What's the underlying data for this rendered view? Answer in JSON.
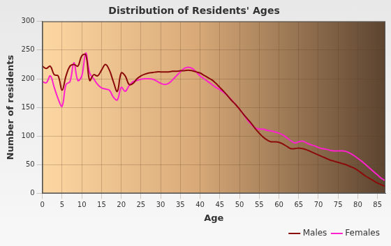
{
  "chart_data": {
    "type": "line",
    "title": "Distribution of Residents' Ages",
    "x_label": "Age",
    "y_label": "Number of residents",
    "x": [
      0,
      1,
      2,
      3,
      4,
      5,
      6,
      7,
      8,
      9,
      10,
      11,
      12,
      13,
      14,
      15,
      16,
      17,
      18,
      19,
      20,
      21,
      22,
      23,
      24,
      25,
      26,
      27,
      28,
      29,
      30,
      31,
      32,
      33,
      34,
      35,
      36,
      37,
      38,
      39,
      40,
      41,
      42,
      43,
      44,
      45,
      46,
      47,
      48,
      49,
      50,
      51,
      52,
      53,
      54,
      55,
      56,
      57,
      58,
      59,
      60,
      61,
      62,
      63,
      64,
      65,
      66,
      67,
      68,
      69,
      70,
      71,
      72,
      73,
      74,
      75,
      76,
      77,
      78,
      79,
      80,
      81,
      82,
      83,
      84,
      85,
      86,
      87
    ],
    "series": [
      {
        "name": "Males",
        "color": "#8b0a0a",
        "values": [
          222,
          218,
          222,
          207,
          205,
          180,
          205,
          222,
          225,
          222,
          240,
          242,
          197,
          207,
          205,
          215,
          225,
          215,
          195,
          178,
          210,
          205,
          190,
          192,
          200,
          205,
          208,
          210,
          211,
          212,
          212,
          212,
          212,
          213,
          213,
          214,
          214,
          215,
          214,
          212,
          210,
          206,
          202,
          198,
          192,
          185,
          178,
          170,
          162,
          155,
          147,
          138,
          130,
          122,
          113,
          105,
          98,
          93,
          90,
          90,
          89,
          86,
          82,
          78,
          78,
          79,
          78,
          76,
          73,
          70,
          67,
          64,
          61,
          58,
          56,
          54,
          52,
          50,
          47,
          44,
          40,
          35,
          30,
          26,
          22,
          18,
          15,
          12
        ]
      },
      {
        "name": "Females",
        "color": "#ff22cc",
        "values": [
          195,
          193,
          205,
          185,
          165,
          152,
          190,
          195,
          228,
          197,
          205,
          245,
          210,
          200,
          190,
          184,
          182,
          180,
          168,
          163,
          185,
          178,
          188,
          195,
          197,
          199,
          200,
          200,
          199,
          196,
          192,
          190,
          192,
          198,
          205,
          212,
          218,
          220,
          218,
          212,
          205,
          200,
          195,
          190,
          185,
          181,
          176,
          170,
          163,
          155,
          147,
          138,
          128,
          120,
          114,
          112,
          112,
          110,
          109,
          107,
          105,
          102,
          97,
          92,
          88,
          90,
          91,
          88,
          85,
          83,
          80,
          78,
          77,
          75,
          74,
          74,
          74,
          73,
          70,
          66,
          61,
          56,
          50,
          44,
          38,
          32,
          26,
          22
        ]
      }
    ],
    "xlim": [
      0,
      87
    ],
    "xticks": [
      0,
      5,
      10,
      15,
      20,
      25,
      30,
      35,
      40,
      45,
      50,
      55,
      60,
      65,
      70,
      75,
      80,
      85
    ],
    "ylim": [
      0,
      300
    ],
    "yticks": [
      0,
      50,
      100,
      150,
      200,
      250,
      300
    ],
    "grid": true,
    "legend": "lower right"
  }
}
